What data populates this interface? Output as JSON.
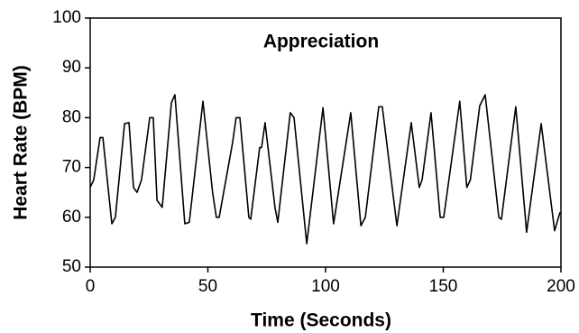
{
  "chart_data": {
    "type": "line",
    "title": "Appreciation",
    "x_label": "Time (Seconds)",
    "y_label": "Heart Rate (BPM)",
    "x": [
      0,
      1.5,
      4.2,
      5.4,
      9.2,
      10.7,
      14.6,
      16.5,
      18.4,
      19.9,
      21.8,
      25.3,
      26.8,
      28.4,
      30.6,
      34.5,
      36,
      40.2,
      42.1,
      47.9,
      52,
      53.6,
      54.8,
      60.5,
      62,
      63.6,
      67.4,
      68.2,
      72,
      72.8,
      74.3,
      78.5,
      79.7,
      85,
      86.6,
      92,
      98.9,
      103.4,
      110.7,
      115,
      116.9,
      119.9,
      122.6,
      124.1,
      130.3,
      136.4,
      139.8,
      141,
      144.8,
      148.7,
      150.2,
      157,
      160,
      161.5,
      165.5,
      167.8,
      173.6,
      174.7,
      180.8,
      185.4,
      191.6,
      197.3,
      199.6
    ],
    "values": [
      66,
      67.5,
      76,
      76,
      58.7,
      60,
      78.8,
      79,
      66,
      65,
      67.5,
      80,
      80,
      63.4,
      62,
      83,
      84.6,
      58.7,
      59,
      83.3,
      65,
      60,
      60,
      75,
      80,
      80,
      60,
      59.6,
      74,
      74,
      79,
      62,
      59,
      81,
      80,
      54.7,
      82,
      58.7,
      81,
      58.3,
      60,
      71.7,
      82.2,
      82.2,
      58.3,
      79,
      66,
      67.5,
      81,
      60,
      60,
      83.3,
      66,
      67.5,
      82.4,
      84.6,
      60,
      59.6,
      82.2,
      57,
      78.8,
      57.3,
      61
    ],
    "color": "#000000",
    "xlim": [
      0,
      200
    ],
    "xticks": [
      0,
      50,
      100,
      150,
      200
    ],
    "ylim": [
      50,
      100
    ],
    "yticks": [
      50,
      60,
      70,
      80,
      90,
      100
    ]
  }
}
